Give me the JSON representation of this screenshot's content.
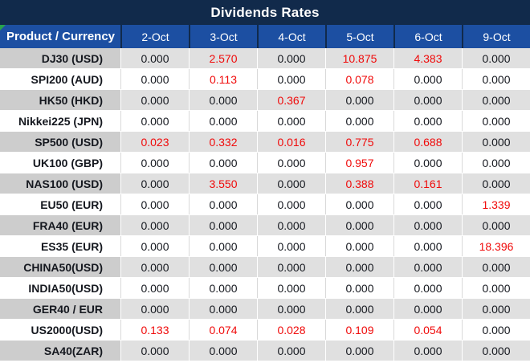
{
  "title": "Dividends Rates",
  "table": {
    "product_header": "Product / Currency",
    "date_headers": [
      "2-Oct",
      "3-Oct",
      "4-Oct",
      "5-Oct",
      "6-Oct",
      "9-Oct"
    ],
    "rows": [
      {
        "product": "DJ30 (USD)",
        "cells": [
          {
            "t": "0.000",
            "red": false
          },
          {
            "t": "2.570",
            "red": true
          },
          {
            "t": "0.000",
            "red": false
          },
          {
            "t": "10.875",
            "red": true
          },
          {
            "t": "4.383",
            "red": true
          },
          {
            "t": "0.000",
            "red": false
          }
        ]
      },
      {
        "product": "SPI200 (AUD)",
        "cells": [
          {
            "t": "0.000",
            "red": false
          },
          {
            "t": "0.113",
            "red": true
          },
          {
            "t": "0.000",
            "red": false
          },
          {
            "t": "0.078",
            "red": true
          },
          {
            "t": "0.000",
            "red": false
          },
          {
            "t": "0.000",
            "red": false
          }
        ]
      },
      {
        "product": "HK50 (HKD)",
        "cells": [
          {
            "t": "0.000",
            "red": false
          },
          {
            "t": "0.000",
            "red": false
          },
          {
            "t": "0.367",
            "red": true
          },
          {
            "t": "0.000",
            "red": false
          },
          {
            "t": "0.000",
            "red": false
          },
          {
            "t": "0.000",
            "red": false
          }
        ]
      },
      {
        "product": "Nikkei225 (JPN)",
        "cells": [
          {
            "t": "0.000",
            "red": false
          },
          {
            "t": "0.000",
            "red": false
          },
          {
            "t": "0.000",
            "red": false
          },
          {
            "t": "0.000",
            "red": false
          },
          {
            "t": "0.000",
            "red": false
          },
          {
            "t": "0.000",
            "red": false
          }
        ]
      },
      {
        "product": "SP500 (USD)",
        "cells": [
          {
            "t": "0.023",
            "red": true
          },
          {
            "t": "0.332",
            "red": true
          },
          {
            "t": "0.016",
            "red": true
          },
          {
            "t": "0.775",
            "red": true
          },
          {
            "t": "0.688",
            "red": true
          },
          {
            "t": "0.000",
            "red": false
          }
        ]
      },
      {
        "product": "UK100 (GBP)",
        "cells": [
          {
            "t": "0.000",
            "red": false
          },
          {
            "t": "0.000",
            "red": false
          },
          {
            "t": "0.000",
            "red": false
          },
          {
            "t": "0.957",
            "red": true
          },
          {
            "t": "0.000",
            "red": false
          },
          {
            "t": "0.000",
            "red": false
          }
        ]
      },
      {
        "product": "NAS100 (USD)",
        "cells": [
          {
            "t": "0.000",
            "red": false
          },
          {
            "t": "3.550",
            "red": true
          },
          {
            "t": "0.000",
            "red": false
          },
          {
            "t": "0.388",
            "red": true
          },
          {
            "t": "0.161",
            "red": true
          },
          {
            "t": "0.000",
            "red": false
          }
        ]
      },
      {
        "product": "EU50 (EUR)",
        "cells": [
          {
            "t": "0.000",
            "red": false
          },
          {
            "t": "0.000",
            "red": false
          },
          {
            "t": "0.000",
            "red": false
          },
          {
            "t": "0.000",
            "red": false
          },
          {
            "t": "0.000",
            "red": false
          },
          {
            "t": "1.339",
            "red": true
          }
        ]
      },
      {
        "product": "FRA40 (EUR)",
        "cells": [
          {
            "t": "0.000",
            "red": false
          },
          {
            "t": "0.000",
            "red": false
          },
          {
            "t": "0.000",
            "red": false
          },
          {
            "t": "0.000",
            "red": false
          },
          {
            "t": "0.000",
            "red": false
          },
          {
            "t": "0.000",
            "red": false
          }
        ]
      },
      {
        "product": "ES35 (EUR)",
        "cells": [
          {
            "t": "0.000",
            "red": false
          },
          {
            "t": "0.000",
            "red": false
          },
          {
            "t": "0.000",
            "red": false
          },
          {
            "t": "0.000",
            "red": false
          },
          {
            "t": "0.000",
            "red": false
          },
          {
            "t": "18.396",
            "red": true
          }
        ]
      },
      {
        "product": "CHINA50(USD)",
        "cells": [
          {
            "t": "0.000",
            "red": false
          },
          {
            "t": "0.000",
            "red": false
          },
          {
            "t": "0.000",
            "red": false
          },
          {
            "t": "0.000",
            "red": false
          },
          {
            "t": "0.000",
            "red": false
          },
          {
            "t": "0.000",
            "red": false
          }
        ]
      },
      {
        "product": "INDIA50(USD)",
        "cells": [
          {
            "t": "0.000",
            "red": false
          },
          {
            "t": "0.000",
            "red": false
          },
          {
            "t": "0.000",
            "red": false
          },
          {
            "t": "0.000",
            "red": false
          },
          {
            "t": "0.000",
            "red": false
          },
          {
            "t": "0.000",
            "red": false
          }
        ]
      },
      {
        "product": "GER40 / EUR",
        "cells": [
          {
            "t": "0.000",
            "red": false
          },
          {
            "t": "0.000",
            "red": false
          },
          {
            "t": "0.000",
            "red": false
          },
          {
            "t": "0.000",
            "red": false
          },
          {
            "t": "0.000",
            "red": false
          },
          {
            "t": "0.000",
            "red": false
          }
        ]
      },
      {
        "product": "US2000(USD)",
        "cells": [
          {
            "t": "0.133",
            "red": true
          },
          {
            "t": "0.074",
            "red": true
          },
          {
            "t": "0.028",
            "red": true
          },
          {
            "t": "0.109",
            "red": true
          },
          {
            "t": "0.054",
            "red": true
          },
          {
            "t": "0.000",
            "red": false
          }
        ]
      },
      {
        "product": "SA40(ZAR)",
        "cells": [
          {
            "t": "0.000",
            "red": false
          },
          {
            "t": "0.000",
            "red": false
          },
          {
            "t": "0.000",
            "red": false
          },
          {
            "t": "0.000",
            "red": false
          },
          {
            "t": "0.000",
            "red": false
          },
          {
            "t": "0.000",
            "red": false
          }
        ]
      }
    ]
  },
  "icons": {
    "corner_marker": "green-corner-triangle"
  },
  "colors": {
    "title_bar_bg": "#112A4B",
    "header_bg": "#1C4FA2",
    "header_text": "#FFFFFF",
    "band_row_bg": "#E0E0E0",
    "band_product_bg": "#CDCDCD",
    "plain_row_bg": "#FFFFFF",
    "grid_line": "#D9D9D9",
    "text": "#15181F",
    "highlight_red": "#F00A0A",
    "corner_marker_green": "#28A34C"
  }
}
